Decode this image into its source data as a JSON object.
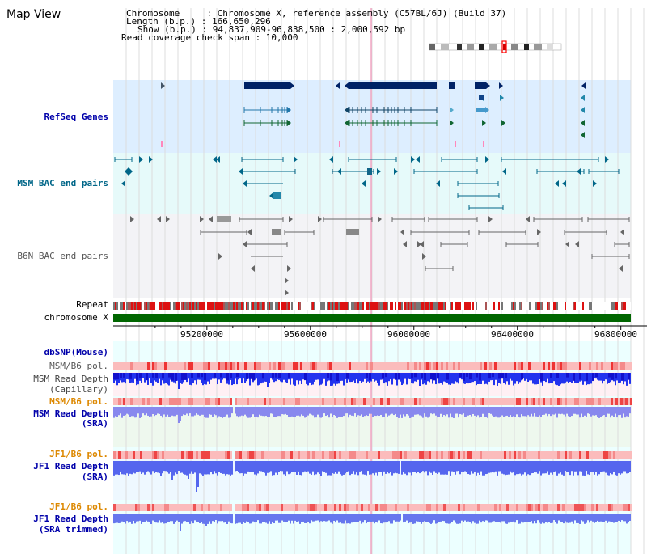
{
  "page": {
    "title": "Map View"
  },
  "header": {
    "chromosome_line": "Chromosome     : Chromosome X, reference assembly (C57BL/6J) (Build 37)",
    "length_line": "Length (b.p.) : 166,650,296",
    "show_line": "Show (b.p.) : 94,837,909-96,838,500 : 2,000,592 bp",
    "coverage_line": "Read coverage check span : 10,000"
  },
  "tracks": {
    "refseq": {
      "label": "RefSeq Genes",
      "color": "#0000aa"
    },
    "msm_bac": {
      "label": "MSM BAC end pairs",
      "color": "#006688"
    },
    "b6n_bac": {
      "label": "B6N BAC end pairs",
      "color": "#555555"
    },
    "repeat": {
      "label": "Repeat"
    },
    "chromosome": {
      "label": "chromosome X"
    },
    "dbsnp": {
      "label": "dbSNP(Mouse)",
      "color": "#0000aa"
    },
    "msm_b6_pol_cap": {
      "label": "MSM/B6 pol.",
      "color": "#555555"
    },
    "msm_depth_cap": {
      "label_1": "MSM Read Depth",
      "label_2": "(Capillary)",
      "color": "#444444"
    },
    "msm_b6_pol_sra": {
      "label": "MSM/B6 pol.",
      "color": "#dd8800"
    },
    "msm_depth_sra": {
      "label_1": "MSM Read Depth",
      "label_2": "(SRA)",
      "color": "#0000aa"
    },
    "jf1_b6_pol_sra": {
      "label": "JF1/B6 pol.",
      "color": "#dd8800"
    },
    "jf1_depth_sra": {
      "label_1": "JF1 Read Depth",
      "label_2": "(SRA)",
      "color": "#0000aa"
    },
    "jf1_b6_pol_trim": {
      "label": "JF1/B6 pol.",
      "color": "#dd8800"
    },
    "jf1_depth_trim": {
      "label_1": "JF1 Read Depth",
      "label_2": "(SRA trimmed)",
      "color": "#0000aa"
    }
  },
  "axis": {
    "ticks": [
      "95200000",
      "95600000",
      "96000000",
      "96400000",
      "96800000"
    ],
    "tick_values": [
      95200000,
      95600000,
      96000000,
      96400000,
      96800000
    ],
    "range": [
      94837909,
      96838500
    ]
  }
}
